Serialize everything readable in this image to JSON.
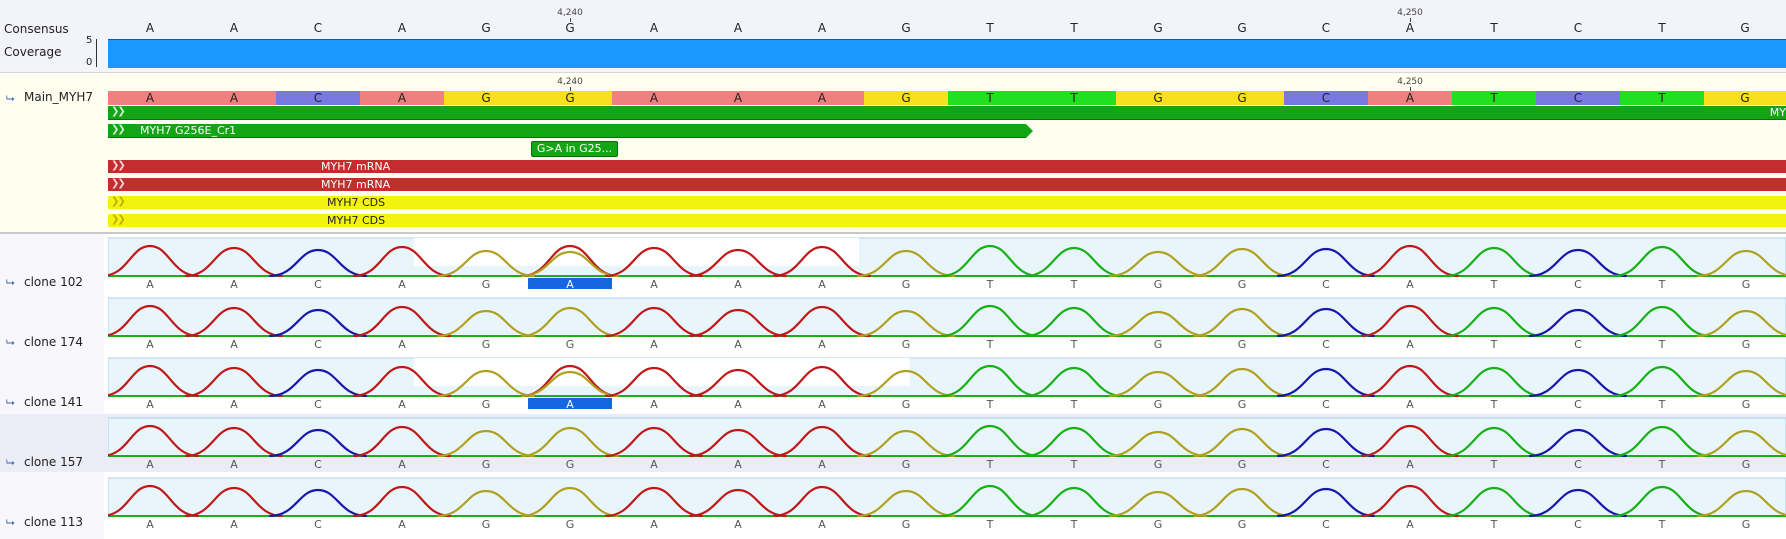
{
  "rows": {
    "consensus_label": "Consensus",
    "coverage_label": "Coverage",
    "coverage_ticks": [
      "5",
      "0"
    ],
    "reference_label": "Main_MYH7"
  },
  "ruler": {
    "positions": [
      "4,240",
      "4,250"
    ]
  },
  "consensus": [
    "A",
    "A",
    "C",
    "A",
    "G",
    "G",
    "A",
    "A",
    "A",
    "G",
    "T",
    "T",
    "G",
    "G",
    "C",
    "A",
    "T",
    "C",
    "T",
    "G"
  ],
  "reference_seq": [
    "A",
    "A",
    "C",
    "A",
    "G",
    "G",
    "A",
    "A",
    "A",
    "G",
    "T",
    "T",
    "G",
    "G",
    "C",
    "A",
    "T",
    "C",
    "T",
    "G"
  ],
  "annotations": [
    {
      "label": "MY",
      "color": "#13a513"
    },
    {
      "label": "MYH7 G256E_Cr1",
      "color": "#13a513"
    },
    {
      "label": "G>A in G25...",
      "color": "#13a513"
    },
    {
      "label": "MYH7 mRNA",
      "color": "#c42d2d"
    },
    {
      "label": "MYH7 mRNA",
      "color": "#c42d2d"
    },
    {
      "label": "MYH7 CDS",
      "color": "#f3f310"
    },
    {
      "label": "MYH7 CDS",
      "color": "#f3f310"
    }
  ],
  "clones": [
    {
      "label": "clone 102",
      "bases": [
        "A",
        "A",
        "C",
        "A",
        "G",
        "A",
        "A",
        "A",
        "A",
        "G",
        "T",
        "T",
        "G",
        "G",
        "C",
        "A",
        "T",
        "C",
        "T",
        "G"
      ],
      "variant_index": 5
    },
    {
      "label": "clone 174",
      "bases": [
        "A",
        "A",
        "C",
        "A",
        "G",
        "G",
        "A",
        "A",
        "A",
        "G",
        "T",
        "T",
        "G",
        "G",
        "C",
        "A",
        "T",
        "C",
        "T",
        "G"
      ],
      "variant_index": -1
    },
    {
      "label": "clone 141",
      "bases": [
        "A",
        "A",
        "C",
        "A",
        "G",
        "A",
        "A",
        "A",
        "A",
        "G",
        "T",
        "T",
        "G",
        "G",
        "C",
        "A",
        "T",
        "C",
        "T",
        "G"
      ],
      "variant_index": 5
    },
    {
      "label": "clone 157",
      "bases": [
        "A",
        "A",
        "C",
        "A",
        "G",
        "G",
        "A",
        "A",
        "A",
        "G",
        "T",
        "T",
        "G",
        "G",
        "C",
        "A",
        "T",
        "C",
        "T",
        "G"
      ],
      "variant_index": -1
    },
    {
      "label": "clone 113",
      "bases": [
        "A",
        "A",
        "C",
        "A",
        "G",
        "G",
        "A",
        "A",
        "A",
        "G",
        "T",
        "T",
        "G",
        "G",
        "C",
        "A",
        "T",
        "C",
        "T",
        "G"
      ],
      "variant_index": -1
    }
  ],
  "colors": {
    "A": "#f08080",
    "C": "#7878e0",
    "G": "#f8e020",
    "T": "#20e020",
    "trace_A": "#c01818",
    "trace_C": "#1818a8",
    "trace_G": "#b0a020",
    "trace_T": "#18b018",
    "coverage": "#1a98ff",
    "variant": "#1566e0"
  },
  "icons": {
    "row_icon": "track-arrow-icon"
  }
}
